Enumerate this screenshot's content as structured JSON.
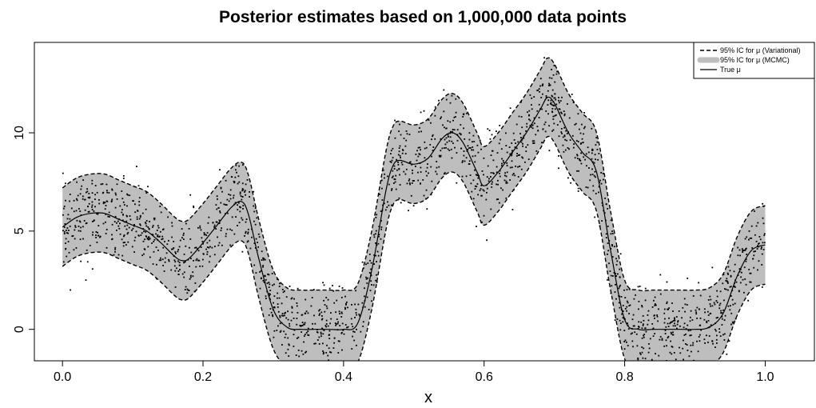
{
  "chart_data": {
    "type": "line",
    "title": "Posterior estimates based on 1,000,000 data points",
    "xlabel": "x",
    "ylabel": "",
    "xlim": [
      -0.04,
      1.07
    ],
    "ylim": [
      -1.6,
      14.6
    ],
    "x_ticks": [
      0.0,
      0.2,
      0.4,
      0.6,
      0.8,
      1.0
    ],
    "x_tick_labels": [
      "0.0",
      "0.2",
      "0.4",
      "0.6",
      "0.8",
      "1.0"
    ],
    "y_ticks": [
      0,
      5,
      10
    ],
    "y_tick_labels": [
      "0",
      "5",
      "10"
    ],
    "grid": false,
    "legend_position": "top-right",
    "band_half_width": 2.0,
    "colors": {
      "band": "#bebebe",
      "line": "#000000",
      "points": "#000000"
    },
    "legend": [
      {
        "label": "95% IC for μ (Variational)",
        "style": "dashed"
      },
      {
        "label": "95% IC for μ (MCMC)",
        "style": "band"
      },
      {
        "label": "True  μ",
        "style": "solid"
      }
    ],
    "true_mu": {
      "x": [
        0.0,
        0.02,
        0.04,
        0.06,
        0.08,
        0.1,
        0.12,
        0.14,
        0.16,
        0.17,
        0.18,
        0.2,
        0.22,
        0.24,
        0.255,
        0.265,
        0.28,
        0.3,
        0.32,
        0.34,
        0.36,
        0.38,
        0.4,
        0.42,
        0.44,
        0.46,
        0.47,
        0.48,
        0.5,
        0.52,
        0.54,
        0.555,
        0.57,
        0.59,
        0.6,
        0.62,
        0.64,
        0.66,
        0.68,
        0.69,
        0.7,
        0.72,
        0.74,
        0.76,
        0.78,
        0.8,
        0.82,
        0.84,
        0.86,
        0.88,
        0.9,
        0.92,
        0.94,
        0.96,
        0.98,
        1.0
      ],
      "y": [
        5.2,
        5.7,
        5.9,
        5.9,
        5.6,
        5.3,
        5.0,
        4.4,
        3.7,
        3.5,
        3.6,
        4.4,
        5.3,
        6.2,
        6.5,
        5.8,
        3.5,
        1.0,
        0.1,
        0.0,
        0.0,
        0.0,
        0.0,
        0.3,
        3.0,
        7.0,
        8.3,
        8.6,
        8.4,
        8.7,
        9.7,
        10.0,
        9.5,
        8.0,
        7.3,
        8.0,
        9.0,
        10.0,
        11.2,
        11.8,
        11.5,
        10.0,
        9.0,
        8.0,
        4.0,
        0.5,
        0.0,
        0.0,
        0.0,
        0.0,
        0.0,
        0.1,
        0.8,
        2.7,
        4.0,
        4.3
      ]
    }
  }
}
